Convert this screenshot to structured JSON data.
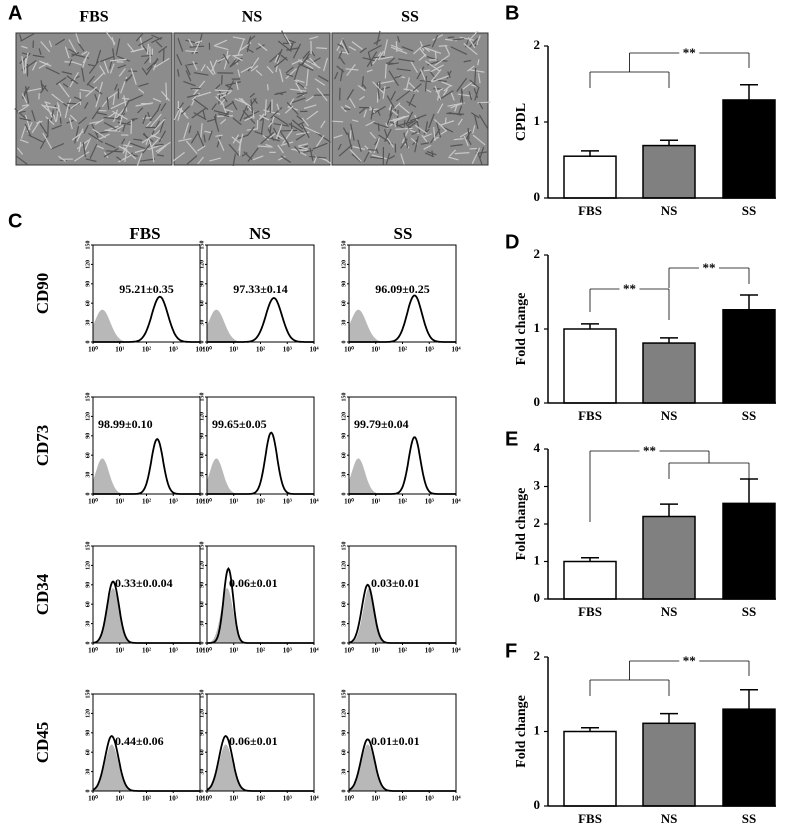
{
  "panel_labels": [
    "A",
    "B",
    "C",
    "D",
    "E",
    "F"
  ],
  "images": {
    "columns": [
      "FBS",
      "NS",
      "SS"
    ]
  },
  "flow": {
    "columns": [
      "FBS",
      "NS",
      "SS"
    ],
    "yticks": [
      0,
      30,
      60,
      90,
      120,
      150
    ],
    "xticks": [
      {
        "value": 1,
        "label": "10⁰"
      },
      {
        "value": 10,
        "label": "10¹"
      },
      {
        "value": 100,
        "label": "10²"
      },
      {
        "value": 1000,
        "label": "10³"
      },
      {
        "value": 10000,
        "label": "10⁴"
      }
    ],
    "rows": [
      {
        "marker": "CD90",
        "values": [
          "95.21±0.35",
          "97.33±0.14",
          "96.09±0.25"
        ]
      },
      {
        "marker": "CD73",
        "values": [
          "98.99±0.10",
          "99.65±0.05",
          "99.79±0.04"
        ]
      },
      {
        "marker": "CD34",
        "values": [
          "0.33±0.0.04",
          "0.06±0.01",
          "0.03±0.01"
        ]
      },
      {
        "marker": "CD45",
        "values": [
          "0.44±0.06",
          "0.06±0.01",
          "0.01±0.01"
        ]
      }
    ]
  },
  "chart_data": [
    {
      "type": "bar",
      "ylabel": "CPDL",
      "categories": [
        "FBS",
        "NS",
        "SS"
      ],
      "values": [
        0.55,
        0.69,
        1.29
      ],
      "errors": [
        0.07,
        0.07,
        0.2
      ],
      "colors": [
        "#ffffff",
        "#808080",
        "#000000"
      ],
      "ylim": [
        0,
        2
      ],
      "yticks": [
        0,
        1,
        2
      ],
      "annotations": [
        "**"
      ]
    },
    {
      "type": "bar",
      "ylabel": "Fold change",
      "categories": [
        "FBS",
        "NS",
        "SS"
      ],
      "values": [
        1.0,
        0.81,
        1.26
      ],
      "errors": [
        0.07,
        0.07,
        0.2
      ],
      "colors": [
        "#ffffff",
        "#808080",
        "#000000"
      ],
      "ylim": [
        0,
        2
      ],
      "yticks": [
        0,
        1,
        2
      ],
      "annotations": [
        "**",
        "**"
      ]
    },
    {
      "type": "bar",
      "ylabel": "Fold change",
      "categories": [
        "FBS",
        "NS",
        "SS"
      ],
      "values": [
        1.0,
        2.2,
        2.55
      ],
      "errors": [
        0.1,
        0.33,
        0.65
      ],
      "colors": [
        "#ffffff",
        "#808080",
        "#000000"
      ],
      "ylim": [
        0,
        4
      ],
      "yticks": [
        0,
        1,
        2,
        3,
        4
      ],
      "annotations": [
        "**"
      ]
    },
    {
      "type": "bar",
      "ylabel": "Fold change",
      "categories": [
        "FBS",
        "NS",
        "SS"
      ],
      "values": [
        1.0,
        1.11,
        1.3
      ],
      "errors": [
        0.05,
        0.13,
        0.26
      ],
      "colors": [
        "#ffffff",
        "#808080",
        "#000000"
      ],
      "ylim": [
        0,
        2
      ],
      "yticks": [
        0,
        1,
        2
      ],
      "annotations": [
        "**"
      ]
    }
  ]
}
